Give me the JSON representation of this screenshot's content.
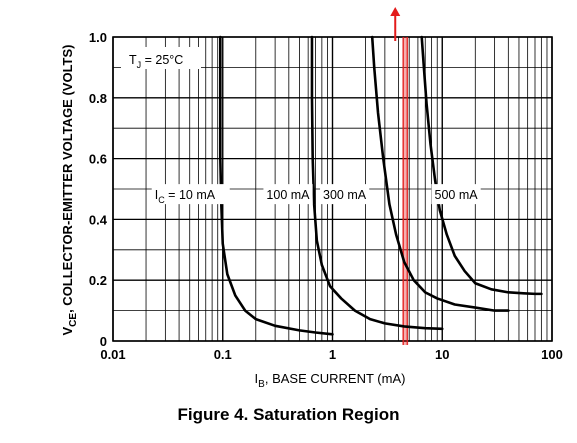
{
  "chart_data": {
    "type": "line",
    "caption": "Figure 4. Saturation Region",
    "ylabel": {
      "pre": "V",
      "sub": "CE",
      "post": ", COLLECTOR-EMITTER VOLTAGE (VOLTS)"
    },
    "xlabel": {
      "pre": "I",
      "sub": "B",
      "post": ", BASE CURRENT (mA)"
    },
    "xscale": "log",
    "xlim": [
      0.01,
      100
    ],
    "ylim": [
      0,
      1.0
    ],
    "x_ticks": [
      {
        "v": 0.01,
        "label": "0.01"
      },
      {
        "v": 0.1,
        "label": "0.1"
      },
      {
        "v": 1,
        "label": "1"
      },
      {
        "v": 10,
        "label": "10"
      },
      {
        "v": 100,
        "label": "100"
      }
    ],
    "y_ticks": [
      {
        "v": 0,
        "label": "0"
      },
      {
        "v": 0.2,
        "label": "0.2"
      },
      {
        "v": 0.4,
        "label": "0.4"
      },
      {
        "v": 0.6,
        "label": "0.6"
      },
      {
        "v": 0.8,
        "label": "0.8"
      },
      {
        "v": 1.0,
        "label": "1.0"
      }
    ],
    "grid": true,
    "temperature": {
      "pre": "T",
      "sub": "J",
      "post": " = 25°C"
    },
    "series": [
      {
        "name": "I_C = 10 mA",
        "x": [
          0.095,
          0.095,
          0.097,
          0.1,
          0.11,
          0.13,
          0.16,
          0.2,
          0.3,
          0.5,
          0.7,
          1.0
        ],
        "y": [
          1.0,
          0.6,
          0.45,
          0.32,
          0.22,
          0.15,
          0.1,
          0.072,
          0.05,
          0.035,
          0.028,
          0.022
        ]
      },
      {
        "name": "100 mA",
        "x": [
          0.65,
          0.65,
          0.66,
          0.68,
          0.72,
          0.8,
          0.95,
          1.2,
          1.6,
          2.2,
          3.0,
          4.5,
          7.0,
          10.0
        ],
        "y": [
          1.0,
          0.8,
          0.6,
          0.45,
          0.33,
          0.25,
          0.18,
          0.14,
          0.1,
          0.072,
          0.058,
          0.048,
          0.042,
          0.04
        ]
      },
      {
        "name": "300 mA",
        "x": [
          2.3,
          2.4,
          2.6,
          2.9,
          3.3,
          3.8,
          4.5,
          5.5,
          7.0,
          9.0,
          13.0,
          20.0,
          30.0,
          40.0
        ],
        "y": [
          1.0,
          0.9,
          0.75,
          0.6,
          0.45,
          0.35,
          0.26,
          0.2,
          0.16,
          0.14,
          0.12,
          0.11,
          0.1,
          0.1
        ]
      },
      {
        "name": "500 mA",
        "x": [
          6.5,
          6.8,
          7.2,
          7.8,
          8.6,
          9.5,
          11.0,
          13.0,
          16.0,
          20.0,
          28.0,
          40.0,
          55.0,
          70.0,
          80.0
        ],
        "y": [
          1.0,
          0.9,
          0.78,
          0.65,
          0.53,
          0.43,
          0.35,
          0.28,
          0.23,
          0.19,
          0.17,
          0.16,
          0.157,
          0.155,
          0.155
        ]
      }
    ],
    "annotations": [
      {
        "pre": "I",
        "sub": "C",
        "post": " = 10 mA",
        "x": 0.024,
        "y": 0.47
      },
      {
        "text": "100 mA",
        "x": 0.25,
        "y": 0.47
      },
      {
        "text": "300 mA",
        "x": 0.82,
        "y": 0.47
      },
      {
        "text": "500 mA",
        "x": 8.5,
        "y": 0.47
      }
    ],
    "marker": {
      "x": 4.6,
      "color": "#e31b1b",
      "arrow": true
    },
    "colors": {
      "curve": "#000000",
      "grid": "#000000",
      "marker": "#e31b1b"
    }
  }
}
